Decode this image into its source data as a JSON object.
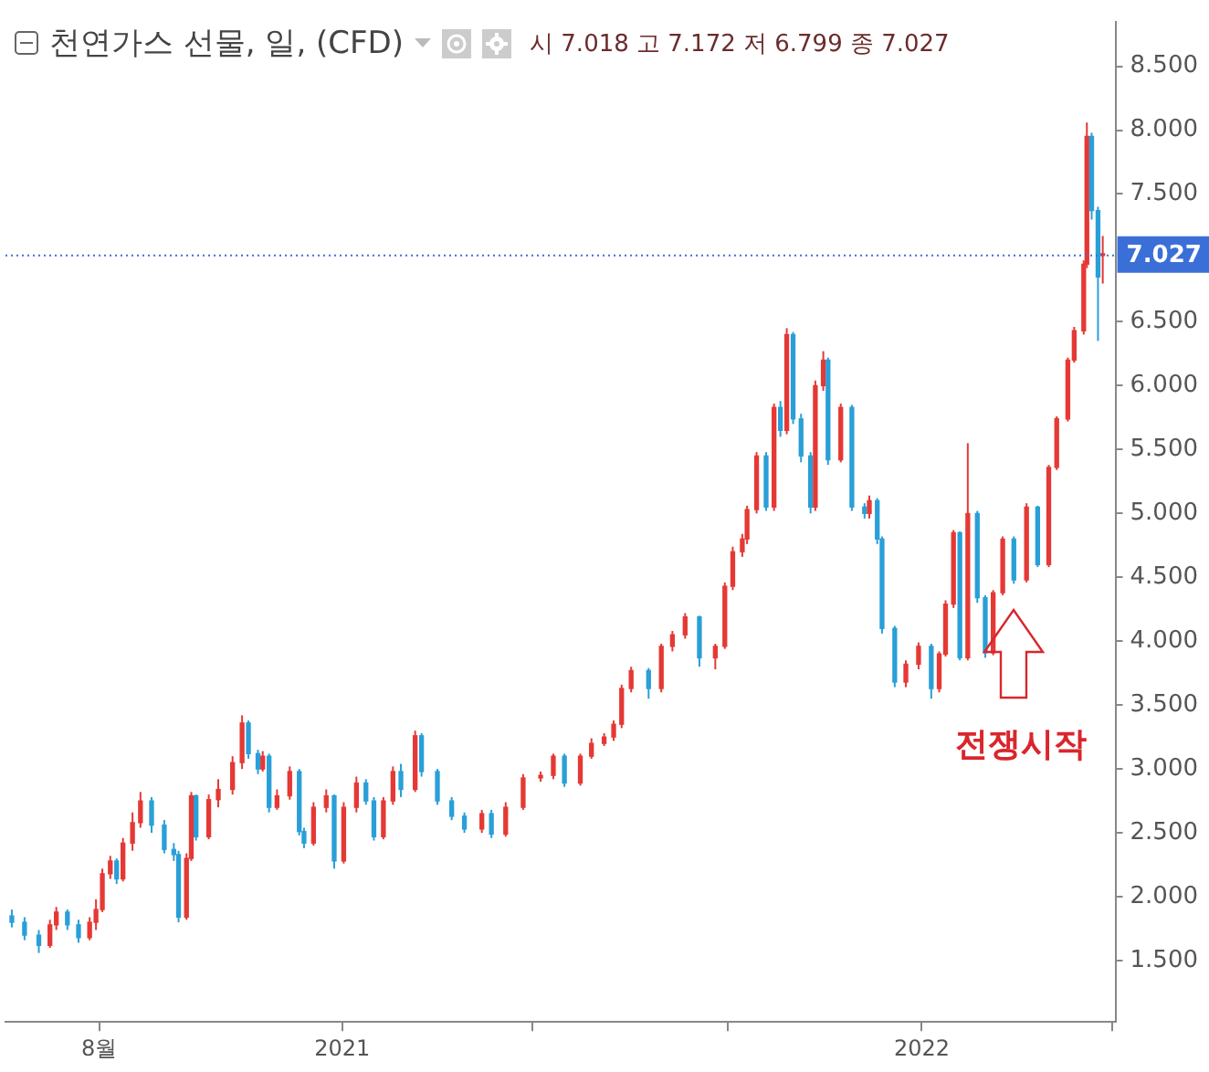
{
  "chart_data": {
    "type": "candlestick",
    "title": "천연가스 선물, 일, (CFD)",
    "subtitle": "시 7.018 고 7.172 저 6.799 종 7.027",
    "x": [
      "2020-06-07",
      "2020-06-15",
      "2020-06-24",
      "2020-07-01",
      "2020-07-05",
      "2020-07-12",
      "2020-07-19",
      "2020-07-26",
      "2020-07-30",
      "2020-08-03",
      "2020-08-08",
      "2020-08-12",
      "2020-08-16",
      "2020-08-22",
      "2020-08-27",
      "2020-09-03",
      "2020-09-11",
      "2020-09-17",
      "2020-09-20",
      "2020-09-25",
      "2020-09-28",
      "2020-10-01",
      "2020-10-09",
      "2020-10-15",
      "2020-10-24",
      "2020-10-30",
      "2020-11-03",
      "2020-11-09",
      "2020-11-12",
      "2020-11-16",
      "2020-11-21",
      "2020-11-29",
      "2020-12-05",
      "2020-12-08",
      "2020-12-14",
      "2020-12-22",
      "2020-12-27",
      "2021-01-02",
      "2021-01-10",
      "2021-01-16",
      "2021-01-21",
      "2021-01-27",
      "2021-02-02",
      "2021-02-07",
      "2021-02-16",
      "2021-02-20",
      "2021-03-02",
      "2021-03-11",
      "2021-03-19",
      "2021-03-30",
      "2021-04-05",
      "2021-04-14",
      "2021-04-25",
      "2021-05-06",
      "2021-05-14",
      "2021-05-21",
      "2021-05-31",
      "2021-06-07",
      "2021-06-15",
      "2021-06-21",
      "2021-06-26",
      "2021-07-02",
      "2021-07-13",
      "2021-07-21",
      "2021-07-28",
      "2021-08-05",
      "2021-08-14",
      "2021-08-24",
      "2021-08-30",
      "2021-09-04",
      "2021-09-10",
      "2021-09-13",
      "2021-09-19",
      "2021-09-25",
      "2021-09-30",
      "2021-10-04",
      "2021-10-08",
      "2021-10-12",
      "2021-10-17",
      "2021-10-23",
      "2021-10-26",
      "2021-10-31",
      "2021-11-03",
      "2021-11-11",
      "2021-11-18",
      "2021-11-26",
      "2021-11-29",
      "2021-12-04",
      "2021-12-07",
      "2021-12-15",
      "2021-12-22",
      "2021-12-30",
      "2022-01-07",
      "2022-01-12",
      "2022-01-16",
      "2022-01-21",
      "2022-01-25",
      "2022-01-30",
      "2022-02-05",
      "2022-02-10",
      "2022-02-15",
      "2022-02-21",
      "2022-02-28",
      "2022-03-08",
      "2022-03-15",
      "2022-03-22",
      "2022-03-27",
      "2022-04-03",
      "2022-04-07",
      "2022-04-13",
      "2022-04-15",
      "2022-04-18",
      "2022-04-22",
      "2022-04-25"
    ],
    "ohlc": [
      [
        1.85,
        1.9,
        1.76,
        1.8
      ],
      [
        1.8,
        1.84,
        1.66,
        1.7
      ],
      [
        1.7,
        1.74,
        1.56,
        1.62
      ],
      [
        1.62,
        1.82,
        1.6,
        1.78
      ],
      [
        1.78,
        1.92,
        1.74,
        1.88
      ],
      [
        1.88,
        1.9,
        1.74,
        1.78
      ],
      [
        1.78,
        1.82,
        1.64,
        1.68
      ],
      [
        1.68,
        1.84,
        1.66,
        1.8
      ],
      [
        1.8,
        1.98,
        1.74,
        1.9
      ],
      [
        1.9,
        2.22,
        1.88,
        2.18
      ],
      [
        2.18,
        2.32,
        2.14,
        2.28
      ],
      [
        2.28,
        2.3,
        2.1,
        2.14
      ],
      [
        2.14,
        2.46,
        2.12,
        2.42
      ],
      [
        2.42,
        2.66,
        2.36,
        2.58
      ],
      [
        2.58,
        2.82,
        2.54,
        2.75
      ],
      [
        2.75,
        2.78,
        2.5,
        2.56
      ],
      [
        2.56,
        2.6,
        2.34,
        2.37
      ],
      [
        2.37,
        2.42,
        2.28,
        2.33
      ],
      [
        2.33,
        2.36,
        1.8,
        1.84
      ],
      [
        1.84,
        2.34,
        1.82,
        2.3
      ],
      [
        2.3,
        2.82,
        2.28,
        2.79
      ],
      [
        2.79,
        2.8,
        2.44,
        2.47
      ],
      [
        2.47,
        2.8,
        2.45,
        2.76
      ],
      [
        2.76,
        2.92,
        2.7,
        2.84
      ],
      [
        2.84,
        3.1,
        2.8,
        3.05
      ],
      [
        3.05,
        3.42,
        3.0,
        3.36
      ],
      [
        3.36,
        3.38,
        3.08,
        3.12
      ],
      [
        3.12,
        3.15,
        2.96,
        3.0
      ],
      [
        3.0,
        3.14,
        2.98,
        3.1
      ],
      [
        3.1,
        3.12,
        2.66,
        2.7
      ],
      [
        2.7,
        2.84,
        2.68,
        2.79
      ],
      [
        2.79,
        3.02,
        2.76,
        2.98
      ],
      [
        2.98,
        3.0,
        2.48,
        2.51
      ],
      [
        2.51,
        2.54,
        2.38,
        2.42
      ],
      [
        2.42,
        2.74,
        2.4,
        2.7
      ],
      [
        2.7,
        2.84,
        2.66,
        2.79
      ],
      [
        2.79,
        2.8,
        2.22,
        2.28
      ],
      [
        2.28,
        2.74,
        2.26,
        2.7
      ],
      [
        2.7,
        2.94,
        2.66,
        2.89
      ],
      [
        2.89,
        2.92,
        2.72,
        2.75
      ],
      [
        2.75,
        2.78,
        2.44,
        2.47
      ],
      [
        2.47,
        2.78,
        2.45,
        2.75
      ],
      [
        2.75,
        3.02,
        2.72,
        2.98
      ],
      [
        2.98,
        3.04,
        2.78,
        2.84
      ],
      [
        2.84,
        3.3,
        2.82,
        3.26
      ],
      [
        3.26,
        3.28,
        2.94,
        2.98
      ],
      [
        2.98,
        3.0,
        2.72,
        2.75
      ],
      [
        2.75,
        2.78,
        2.6,
        2.63
      ],
      [
        2.63,
        2.66,
        2.5,
        2.53
      ],
      [
        2.53,
        2.68,
        2.5,
        2.65
      ],
      [
        2.65,
        2.68,
        2.46,
        2.49
      ],
      [
        2.49,
        2.74,
        2.47,
        2.7
      ],
      [
        2.7,
        2.96,
        2.68,
        2.93
      ],
      [
        2.93,
        2.98,
        2.9,
        2.95
      ],
      [
        2.95,
        3.12,
        2.92,
        3.1
      ],
      [
        3.1,
        3.12,
        2.86,
        2.89
      ],
      [
        2.89,
        3.12,
        2.87,
        3.1
      ],
      [
        3.1,
        3.24,
        3.08,
        3.2
      ],
      [
        3.2,
        3.28,
        3.18,
        3.25
      ],
      [
        3.25,
        3.38,
        3.22,
        3.35
      ],
      [
        3.35,
        3.66,
        3.32,
        3.63
      ],
      [
        3.63,
        3.8,
        3.6,
        3.77
      ],
      [
        3.77,
        3.79,
        3.55,
        3.63
      ],
      [
        3.63,
        3.98,
        3.6,
        3.96
      ],
      [
        3.96,
        4.08,
        3.92,
        4.05
      ],
      [
        4.05,
        4.22,
        4.02,
        4.19
      ],
      [
        4.19,
        4.2,
        3.8,
        3.87
      ],
      [
        3.87,
        3.98,
        3.78,
        3.96
      ],
      [
        3.96,
        4.46,
        3.94,
        4.43
      ],
      [
        4.43,
        4.74,
        4.4,
        4.7
      ],
      [
        4.7,
        4.84,
        4.66,
        4.8
      ],
      [
        4.8,
        5.06,
        4.76,
        5.03
      ],
      [
        5.03,
        5.48,
        5.0,
        5.45
      ],
      [
        5.45,
        5.48,
        5.02,
        5.05
      ],
      [
        5.05,
        5.86,
        5.02,
        5.83
      ],
      [
        5.83,
        5.88,
        5.6,
        5.65
      ],
      [
        5.65,
        6.45,
        5.62,
        6.4
      ],
      [
        6.4,
        6.42,
        5.7,
        5.74
      ],
      [
        5.74,
        5.78,
        5.4,
        5.45
      ],
      [
        5.45,
        5.48,
        5.0,
        5.05
      ],
      [
        5.05,
        6.04,
        5.02,
        6.0
      ],
      [
        6.0,
        6.27,
        5.96,
        6.2
      ],
      [
        6.2,
        6.22,
        5.38,
        5.42
      ],
      [
        5.42,
        5.86,
        5.4,
        5.83
      ],
      [
        5.83,
        5.85,
        5.02,
        5.05
      ],
      [
        5.05,
        5.08,
        4.96,
        5.0
      ],
      [
        5.0,
        5.14,
        4.96,
        5.1
      ],
      [
        5.1,
        5.12,
        4.76,
        4.8
      ],
      [
        4.8,
        4.82,
        4.06,
        4.1
      ],
      [
        4.1,
        4.12,
        3.64,
        3.68
      ],
      [
        3.68,
        3.85,
        3.64,
        3.82
      ],
      [
        3.82,
        3.99,
        3.78,
        3.96
      ],
      [
        3.96,
        3.98,
        3.55,
        3.63
      ],
      [
        3.63,
        3.92,
        3.6,
        3.9
      ],
      [
        3.9,
        4.32,
        3.88,
        4.29
      ],
      [
        4.29,
        4.87,
        4.26,
        4.85
      ],
      [
        4.85,
        4.86,
        3.85,
        3.87
      ],
      [
        3.87,
        5.55,
        3.85,
        5.0
      ],
      [
        5.0,
        5.02,
        4.3,
        4.34
      ],
      [
        4.34,
        4.36,
        3.87,
        3.91
      ],
      [
        3.91,
        4.4,
        3.89,
        4.38
      ],
      [
        4.38,
        4.82,
        4.36,
        4.8
      ],
      [
        4.8,
        4.82,
        4.45,
        4.48
      ],
      [
        4.48,
        5.08,
        4.46,
        5.05
      ],
      [
        5.05,
        5.06,
        4.58,
        4.6
      ],
      [
        4.6,
        5.38,
        4.58,
        5.36
      ],
      [
        5.36,
        5.76,
        5.34,
        5.74
      ],
      [
        5.74,
        6.22,
        5.72,
        6.2
      ],
      [
        6.2,
        6.46,
        6.18,
        6.43
      ],
      [
        6.43,
        6.98,
        6.4,
        6.95
      ],
      [
        6.95,
        8.06,
        6.92,
        7.95
      ],
      [
        7.95,
        7.98,
        7.3,
        7.37
      ],
      [
        7.37,
        7.4,
        6.35,
        6.85
      ],
      [
        7.018,
        7.172,
        6.799,
        7.027
      ]
    ],
    "colors": [
      "#2a9fd8",
      "#2a9fd8",
      "#2a9fd8",
      "#e53935",
      "#e53935",
      "#2a9fd8",
      "#2a9fd8",
      "#e53935",
      "#e53935",
      "#e53935",
      "#e53935",
      "#2a9fd8",
      "#e53935",
      "#e53935",
      "#e53935",
      "#2a9fd8",
      "#2a9fd8",
      "#2a9fd8",
      "#2a9fd8",
      "#e53935",
      "#e53935",
      "#2a9fd8",
      "#e53935",
      "#e53935",
      "#e53935",
      "#e53935",
      "#2a9fd8",
      "#2a9fd8",
      "#e53935",
      "#2a9fd8",
      "#e53935",
      "#e53935",
      "#2a9fd8",
      "#2a9fd8",
      "#e53935",
      "#e53935",
      "#2a9fd8",
      "#e53935",
      "#e53935",
      "#2a9fd8",
      "#2a9fd8",
      "#e53935",
      "#e53935",
      "#2a9fd8",
      "#e53935",
      "#2a9fd8",
      "#2a9fd8",
      "#2a9fd8",
      "#2a9fd8",
      "#e53935",
      "#2a9fd8",
      "#e53935",
      "#e53935",
      "#e53935",
      "#e53935",
      "#2a9fd8",
      "#e53935",
      "#e53935",
      "#e53935",
      "#e53935",
      "#e53935",
      "#e53935",
      "#2a9fd8",
      "#e53935",
      "#e53935",
      "#e53935",
      "#2a9fd8",
      "#e53935",
      "#e53935",
      "#e53935",
      "#e53935",
      "#e53935",
      "#e53935",
      "#2a9fd8",
      "#e53935",
      "#2a9fd8",
      "#e53935",
      "#2a9fd8",
      "#2a9fd8",
      "#2a9fd8",
      "#e53935",
      "#e53935",
      "#2a9fd8",
      "#e53935",
      "#2a9fd8",
      "#2a9fd8",
      "#e53935",
      "#2a9fd8",
      "#2a9fd8",
      "#2a9fd8",
      "#e53935",
      "#e53935",
      "#2a9fd8",
      "#e53935",
      "#e53935",
      "#e53935",
      "#2a9fd8",
      "#e53935",
      "#2a9fd8",
      "#2a9fd8",
      "#e53935",
      "#e53935",
      "#2a9fd8",
      "#e53935",
      "#2a9fd8",
      "#e53935",
      "#e53935",
      "#e53935",
      "#e53935",
      "#e53935",
      "#e53935",
      "#2a9fd8",
      "#2a9fd8",
      "#e53935"
    ],
    "xlim": [
      "2020-06-03",
      "2022-05-03"
    ],
    "xticks": [
      {
        "value": "2020-08-01",
        "label": "8월"
      },
      {
        "value": "2021-01-01",
        "label": "2021"
      },
      {
        "value": "2021-05-01",
        "label": null
      },
      {
        "value": "2021-09-01",
        "label": null
      },
      {
        "value": "2022-01-01",
        "label": "2022"
      },
      {
        "value": "2022-05-01",
        "label": null
      }
    ],
    "ylim": [
      1.02,
      8.85
    ],
    "yticks": [
      {
        "value": 1.5,
        "label": "1.500"
      },
      {
        "value": 2,
        "label": "2.000"
      },
      {
        "value": 2.5,
        "label": "2.500"
      },
      {
        "value": 3,
        "label": "3.000"
      },
      {
        "value": 3.5,
        "label": "3.500"
      },
      {
        "value": 4,
        "label": "4.000"
      },
      {
        "value": 4.5,
        "label": "4.500"
      },
      {
        "value": 5,
        "label": "5.000"
      },
      {
        "value": 5.5,
        "label": "5.500"
      },
      {
        "value": 6,
        "label": "6.000"
      },
      {
        "value": 6.5,
        "label": "6.500"
      },
      {
        "value": 7.5,
        "label": "7.500"
      },
      {
        "value": 8,
        "label": "8.000"
      },
      {
        "value": 8.5,
        "label": "8.500"
      }
    ],
    "ref_lines": [
      {
        "axis": "y",
        "value": 7.027,
        "label": "7.027",
        "color": "#3b6fd8",
        "line_style": "dotted"
      }
    ],
    "annotations": [
      "전쟁시작"
    ],
    "grid": false,
    "legend": false
  }
}
